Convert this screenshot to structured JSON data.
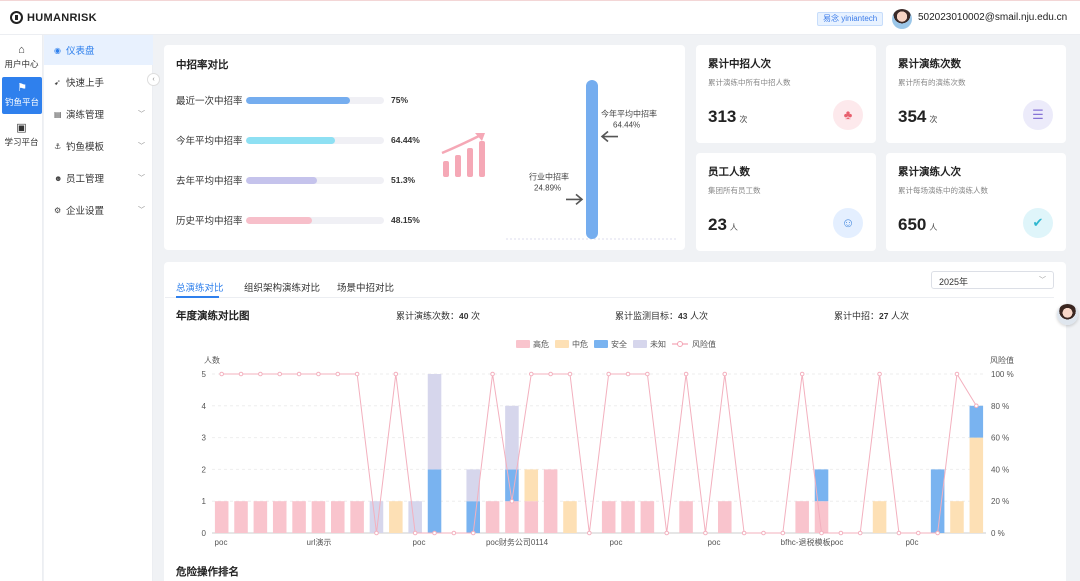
{
  "topbar": {
    "brand": "HUMANRISK",
    "badge": "易念 yiniantech",
    "email": "502023010002@smail.nju.edu.cn"
  },
  "rail": [
    {
      "label": "用户中心",
      "icon": "⌂"
    },
    {
      "label": "钓鱼平台",
      "icon": "⚑"
    },
    {
      "label": "学习平台",
      "icon": "▣"
    }
  ],
  "menu": [
    {
      "label": "仪表盘",
      "icon": "◉"
    },
    {
      "label": "快速上手",
      "icon": "➹"
    },
    {
      "label": "演练管理",
      "icon": "▤"
    },
    {
      "label": "钓鱼模板",
      "icon": "⚓"
    },
    {
      "label": "员工管理",
      "icon": "☻"
    },
    {
      "label": "企业设置",
      "icon": "⚙"
    }
  ],
  "rates": {
    "title": "中招率对比",
    "items": [
      {
        "label": "最近一次中招率",
        "value": "75%",
        "pct": 75,
        "color": "#75adef"
      },
      {
        "label": "今年平均中招率",
        "value": "64.44%",
        "pct": 64.44,
        "color": "#8ee0f3"
      },
      {
        "label": "去年平均中招率",
        "value": "51.3%",
        "pct": 51.3,
        "color": "#c5c3ec"
      },
      {
        "label": "历史平均中招率",
        "value": "48.15%",
        "pct": 48.15,
        "color": "#f7bfca"
      }
    ],
    "thermo": {
      "industry_label": "行业中招率",
      "industry_value": "24.89%",
      "industry_pct": 24.89,
      "year_label": "今年平均中招率",
      "year_value": "64.44%",
      "year_pct": 64.44
    }
  },
  "stats": [
    {
      "title": "累计中招人次",
      "desc": "累计演练中所有中招人数",
      "value": "313",
      "unit": "次",
      "icon": "♣",
      "color": "#e8606e",
      "bg": "#fde9ec"
    },
    {
      "title": "累计演练次数",
      "desc": "累计所有的演练次数",
      "value": "354",
      "unit": "次",
      "icon": "☰",
      "color": "#8673d6",
      "bg": "#ecebfa"
    },
    {
      "title": "员工人数",
      "desc": "集团所有员工数",
      "value": "23",
      "unit": "人",
      "icon": "☺",
      "color": "#4f8fe0",
      "bg": "#e4efff"
    },
    {
      "title": "累计演练人次",
      "desc": "累计每场演练中的演练人数",
      "value": "650",
      "unit": "人",
      "icon": "✔",
      "color": "#2fb7cf",
      "bg": "#dff5fa"
    }
  ],
  "tabs": [
    "总演练对比",
    "组织架构演练对比",
    "场景中招对比"
  ],
  "year_select": "2025年",
  "annual": {
    "title": "年度演练对比图",
    "summary": [
      {
        "label": "累计演练次数：",
        "value": "40",
        "unit": "次"
      },
      {
        "label": "累计监测目标：",
        "value": "43",
        "unit": "人次"
      },
      {
        "label": "累计中招：",
        "value": "27",
        "unit": "人次"
      }
    ]
  },
  "danger_title": "危险操作排名",
  "chart_data": {
    "type": "bar",
    "stacked": true,
    "ylabel_left": "人数",
    "ylabel_right": "风险值",
    "ylim_left": [
      0,
      5
    ],
    "ylim_right": [
      0,
      100
    ],
    "yticks_left": [
      "0",
      "1",
      "2",
      "3",
      "4",
      "5"
    ],
    "yticks_right": [
      "0 %",
      "20 %",
      "40 %",
      "60 %",
      "80 %",
      "100 %"
    ],
    "xlabels": [
      "poc",
      "url演示",
      "poc",
      "poc财务公司0114",
      "poc",
      "poc",
      "bfhc-退税模板poc",
      "p0c"
    ],
    "legend": [
      {
        "name": "高危",
        "color": "#f9c4cd"
      },
      {
        "name": "中危",
        "color": "#fde0b5"
      },
      {
        "name": "安全",
        "color": "#79b3f0"
      },
      {
        "name": "未知",
        "color": "#d6d6ec"
      },
      {
        "name": "风险值",
        "color": "#f3a3b3"
      }
    ],
    "series": [
      {
        "name": "高危",
        "values": [
          1,
          1,
          1,
          1,
          1,
          1,
          1,
          1,
          0,
          0,
          0,
          0,
          0,
          0,
          1,
          1,
          1,
          2,
          0,
          0,
          1,
          1,
          1,
          0,
          1,
          0,
          1,
          0,
          0,
          0,
          1,
          1,
          0,
          0,
          0,
          0,
          0,
          0,
          0,
          0
        ]
      },
      {
        "name": "中危",
        "values": [
          0,
          0,
          0,
          0,
          0,
          0,
          0,
          0,
          0,
          1,
          0,
          0,
          0,
          0,
          0,
          0,
          1,
          0,
          1,
          0,
          0,
          0,
          0,
          0,
          0,
          0,
          0,
          0,
          0,
          0,
          0,
          0,
          0,
          0,
          1,
          0,
          0,
          0,
          1,
          3
        ]
      },
      {
        "name": "安全",
        "values": [
          0,
          0,
          0,
          0,
          0,
          0,
          0,
          0,
          0,
          0,
          0,
          2,
          0,
          1,
          0,
          1,
          0,
          0,
          0,
          0,
          0,
          0,
          0,
          0,
          0,
          0,
          0,
          0,
          0,
          0,
          0,
          1,
          0,
          0,
          0,
          0,
          0,
          2,
          0,
          1
        ]
      },
      {
        "name": "未知",
        "values": [
          0,
          0,
          0,
          0,
          0,
          0,
          0,
          0,
          1,
          0,
          1,
          3,
          0,
          1,
          0,
          2,
          0,
          0,
          0,
          0,
          0,
          0,
          0,
          0,
          0,
          0,
          0,
          0,
          0,
          0,
          0,
          0,
          0,
          0,
          0,
          0,
          0,
          0,
          0,
          0
        ]
      },
      {
        "name": "风险值",
        "values": [
          100,
          100,
          100,
          100,
          100,
          100,
          100,
          100,
          0,
          100,
          0,
          0,
          0,
          0,
          100,
          20,
          100,
          100,
          100,
          0,
          100,
          100,
          100,
          0,
          100,
          0,
          100,
          0,
          0,
          0,
          100,
          0,
          0,
          0,
          100,
          0,
          0,
          0,
          100,
          80
        ]
      }
    ]
  }
}
